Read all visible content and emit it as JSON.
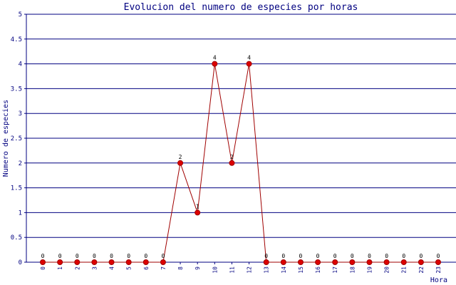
{
  "chart_data": {
    "type": "line",
    "title": "Evolucion del numero de especies por horas",
    "x_label": "Hora",
    "y_label": "Numero de especies",
    "categories": [
      "0",
      "1",
      "2",
      "3",
      "4",
      "5",
      "6",
      "7",
      "8",
      "9",
      "10",
      "11",
      "12",
      "13",
      "14",
      "15",
      "16",
      "17",
      "18",
      "19",
      "20",
      "21",
      "22",
      "23"
    ],
    "series": [
      {
        "name": "especies",
        "color": "#a00000",
        "marker_color": "#dd0000",
        "values": [
          0,
          0,
          0,
          0,
          0,
          0,
          0,
          0,
          2,
          1,
          4,
          2,
          4,
          0,
          0,
          0,
          0,
          0,
          0,
          0,
          0,
          0,
          0,
          0
        ]
      }
    ],
    "ylim": [
      0,
      5
    ],
    "yticks": [
      0,
      0.5,
      1,
      1.5,
      2,
      2.5,
      3,
      3.5,
      4,
      4.5,
      5
    ],
    "grid": true
  }
}
